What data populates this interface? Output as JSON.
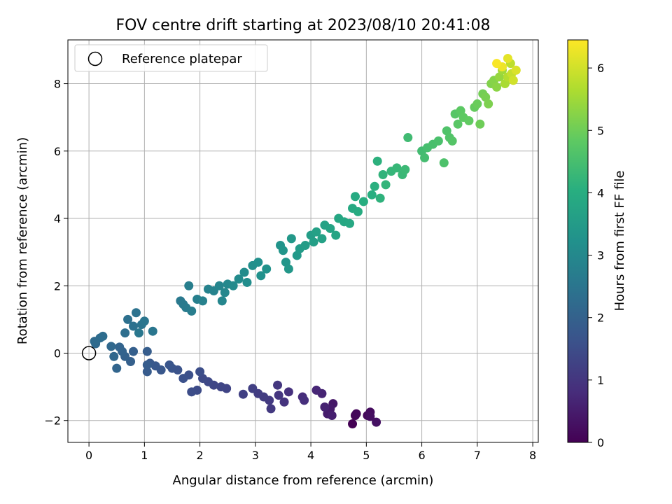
{
  "chart_data": {
    "type": "scatter",
    "title": "FOV centre drift starting at 2023/08/10 20:41:08",
    "xlabel": "Angular distance from reference (arcmin)",
    "ylabel": "Rotation from reference (arcmin)",
    "xlim": [
      -0.38,
      8.1
    ],
    "ylim": [
      -2.65,
      9.3
    ],
    "xticks": [
      0,
      1,
      2,
      3,
      4,
      5,
      6,
      7,
      8
    ],
    "yticks": [
      -2,
      0,
      2,
      4,
      6,
      8
    ],
    "grid": true,
    "legend": {
      "position": "upper left",
      "entries": [
        "Reference platepar"
      ]
    },
    "reference_point": {
      "x": 0,
      "y": 0,
      "marker": "open-circle"
    },
    "colorbar": {
      "label": "Hours from first FF file",
      "range": [
        0,
        6.45
      ],
      "ticks": [
        0,
        1,
        2,
        3,
        4,
        5,
        6
      ],
      "colormap": "viridis"
    },
    "series": [
      {
        "points": [
          [
            4.75,
            -2.1,
            0.0
          ],
          [
            4.8,
            -1.85,
            0.05
          ],
          [
            4.82,
            -1.8,
            0.1
          ],
          [
            5.02,
            -1.85,
            0.15
          ],
          [
            5.07,
            -1.75,
            0.2
          ],
          [
            5.07,
            -1.88,
            0.25
          ],
          [
            5.18,
            -2.05,
            0.3
          ],
          [
            4.4,
            -1.5,
            0.4
          ],
          [
            4.35,
            -1.65,
            0.45
          ],
          [
            4.3,
            -1.8,
            0.5
          ],
          [
            4.38,
            -1.85,
            0.55
          ],
          [
            4.25,
            -1.6,
            0.6
          ],
          [
            4.2,
            -1.2,
            0.65
          ],
          [
            4.1,
            -1.1,
            0.7
          ],
          [
            3.85,
            -1.3,
            0.8
          ],
          [
            3.88,
            -1.4,
            0.85
          ],
          [
            3.6,
            -1.15,
            0.9
          ],
          [
            3.52,
            -1.45,
            0.95
          ],
          [
            3.42,
            -1.25,
            1.0
          ],
          [
            3.4,
            -0.95,
            1.03
          ],
          [
            3.28,
            -1.65,
            1.06
          ],
          [
            3.25,
            -1.4,
            1.1
          ],
          [
            3.15,
            -1.3,
            1.13
          ],
          [
            3.05,
            -1.2,
            1.16
          ],
          [
            2.95,
            -1.05,
            1.2
          ],
          [
            2.78,
            -1.22,
            1.23
          ],
          [
            2.48,
            -1.05,
            1.3
          ],
          [
            2.38,
            -1.0,
            1.33
          ],
          [
            2.25,
            -0.95,
            1.36
          ],
          [
            2.15,
            -0.85,
            1.4
          ],
          [
            2.05,
            -0.75,
            1.43
          ],
          [
            1.95,
            -1.1,
            1.46
          ],
          [
            1.85,
            -1.15,
            1.5
          ],
          [
            2.0,
            -0.55,
            1.53
          ],
          [
            1.8,
            -0.65,
            1.56
          ],
          [
            1.7,
            -0.75,
            1.6
          ],
          [
            1.6,
            -0.5,
            1.63
          ],
          [
            1.5,
            -0.45,
            1.66
          ],
          [
            1.45,
            -0.35,
            1.7
          ],
          [
            1.3,
            -0.5,
            1.73
          ],
          [
            1.2,
            -0.38,
            1.76
          ],
          [
            1.1,
            -0.3,
            1.8
          ],
          [
            1.05,
            -0.55,
            1.83
          ],
          [
            1.05,
            -0.35,
            1.86
          ],
          [
            1.05,
            0.05,
            1.9
          ],
          [
            0.8,
            0.05,
            1.93
          ],
          [
            0.75,
            -0.25,
            1.96
          ],
          [
            0.65,
            -0.1,
            2.0
          ],
          [
            0.6,
            0.05,
            2.03
          ],
          [
            0.55,
            0.18,
            2.06
          ],
          [
            0.5,
            -0.45,
            2.1
          ],
          [
            0.45,
            -0.1,
            2.13
          ],
          [
            0.4,
            0.2,
            2.16
          ],
          [
            0.12,
            0.28,
            2.2
          ],
          [
            0.1,
            0.35,
            2.23
          ],
          [
            0.2,
            0.45,
            2.26
          ],
          [
            0.25,
            0.5,
            2.3
          ],
          [
            0.65,
            0.6,
            2.33
          ],
          [
            0.7,
            1.0,
            2.36
          ],
          [
            0.8,
            0.8,
            2.4
          ],
          [
            0.85,
            1.2,
            2.43
          ],
          [
            0.95,
            0.85,
            2.46
          ],
          [
            1.0,
            0.95,
            2.5
          ],
          [
            1.15,
            0.65,
            2.53
          ],
          [
            0.9,
            0.6,
            2.56
          ],
          [
            1.65,
            1.55,
            2.6
          ],
          [
            1.7,
            1.45,
            2.63
          ],
          [
            1.75,
            1.35,
            2.66
          ],
          [
            1.85,
            1.25,
            2.7
          ],
          [
            1.8,
            2.0,
            2.73
          ],
          [
            1.95,
            1.6,
            2.76
          ],
          [
            2.05,
            1.55,
            2.8
          ],
          [
            2.15,
            1.9,
            2.83
          ],
          [
            2.25,
            1.85,
            2.86
          ],
          [
            2.35,
            2.0,
            2.9
          ],
          [
            2.4,
            1.55,
            2.93
          ],
          [
            2.45,
            1.8,
            2.96
          ],
          [
            2.5,
            2.05,
            3.0
          ],
          [
            2.6,
            2.0,
            3.03
          ],
          [
            2.7,
            2.2,
            3.06
          ],
          [
            2.8,
            2.4,
            3.1
          ],
          [
            2.85,
            2.1,
            3.13
          ],
          [
            2.95,
            2.6,
            3.16
          ],
          [
            3.05,
            2.7,
            3.2
          ],
          [
            3.1,
            2.3,
            3.23
          ],
          [
            3.2,
            2.5,
            3.26
          ],
          [
            3.45,
            3.2,
            3.3
          ],
          [
            3.5,
            3.05,
            3.33
          ],
          [
            3.55,
            2.7,
            3.36
          ],
          [
            3.6,
            2.5,
            3.4
          ],
          [
            3.65,
            3.4,
            3.43
          ],
          [
            3.75,
            2.9,
            3.46
          ],
          [
            3.8,
            3.1,
            3.5
          ],
          [
            3.9,
            3.2,
            3.53
          ],
          [
            4.0,
            3.5,
            3.56
          ],
          [
            4.05,
            3.3,
            3.6
          ],
          [
            4.1,
            3.6,
            3.63
          ],
          [
            4.2,
            3.4,
            3.66
          ],
          [
            4.25,
            3.8,
            3.7
          ],
          [
            4.35,
            3.7,
            3.73
          ],
          [
            4.45,
            3.5,
            3.76
          ],
          [
            4.5,
            4.0,
            3.8
          ],
          [
            4.6,
            3.9,
            3.83
          ],
          [
            4.7,
            3.85,
            3.86
          ],
          [
            4.75,
            4.3,
            3.9
          ],
          [
            4.8,
            4.65,
            3.93
          ],
          [
            4.85,
            4.2,
            3.96
          ],
          [
            4.95,
            4.5,
            4.0
          ],
          [
            5.1,
            4.7,
            4.03
          ],
          [
            5.15,
            4.95,
            4.06
          ],
          [
            5.2,
            5.7,
            4.1
          ],
          [
            5.25,
            4.6,
            4.13
          ],
          [
            5.3,
            5.3,
            4.16
          ],
          [
            5.35,
            5.0,
            4.2
          ],
          [
            5.45,
            5.4,
            4.23
          ],
          [
            5.55,
            5.5,
            4.26
          ],
          [
            5.65,
            5.3,
            4.3
          ],
          [
            5.7,
            5.45,
            4.33
          ],
          [
            5.75,
            6.4,
            4.4
          ],
          [
            6.0,
            6.0,
            4.43
          ],
          [
            6.05,
            5.8,
            4.46
          ],
          [
            6.1,
            6.1,
            4.5
          ],
          [
            6.2,
            6.2,
            4.53
          ],
          [
            6.3,
            6.3,
            4.56
          ],
          [
            6.4,
            5.65,
            4.6
          ],
          [
            6.45,
            6.6,
            4.63
          ],
          [
            6.5,
            6.4,
            4.66
          ],
          [
            6.55,
            6.3,
            4.7
          ],
          [
            6.6,
            7.1,
            4.73
          ],
          [
            6.65,
            6.8,
            4.76
          ],
          [
            6.7,
            7.2,
            4.8
          ],
          [
            6.75,
            7.0,
            4.83
          ],
          [
            6.85,
            6.9,
            4.86
          ],
          [
            6.95,
            7.3,
            4.9
          ],
          [
            7.0,
            7.4,
            4.95
          ],
          [
            7.05,
            6.8,
            5.0
          ],
          [
            7.1,
            7.7,
            5.05
          ],
          [
            7.15,
            7.6,
            5.1
          ],
          [
            7.2,
            7.4,
            5.15
          ],
          [
            7.25,
            8.0,
            5.2
          ],
          [
            7.3,
            8.1,
            5.25
          ],
          [
            7.35,
            7.9,
            5.3
          ],
          [
            7.4,
            8.2,
            5.4
          ],
          [
            7.45,
            8.4,
            5.5
          ],
          [
            7.5,
            8.0,
            5.6
          ],
          [
            7.55,
            8.2,
            5.7
          ],
          [
            7.6,
            8.6,
            5.8
          ],
          [
            7.62,
            8.3,
            5.9
          ],
          [
            7.65,
            8.1,
            6.0
          ],
          [
            7.7,
            8.4,
            6.1
          ],
          [
            7.55,
            8.75,
            6.2
          ],
          [
            7.45,
            8.5,
            6.3
          ],
          [
            7.35,
            8.6,
            6.4
          ]
        ]
      }
    ]
  }
}
